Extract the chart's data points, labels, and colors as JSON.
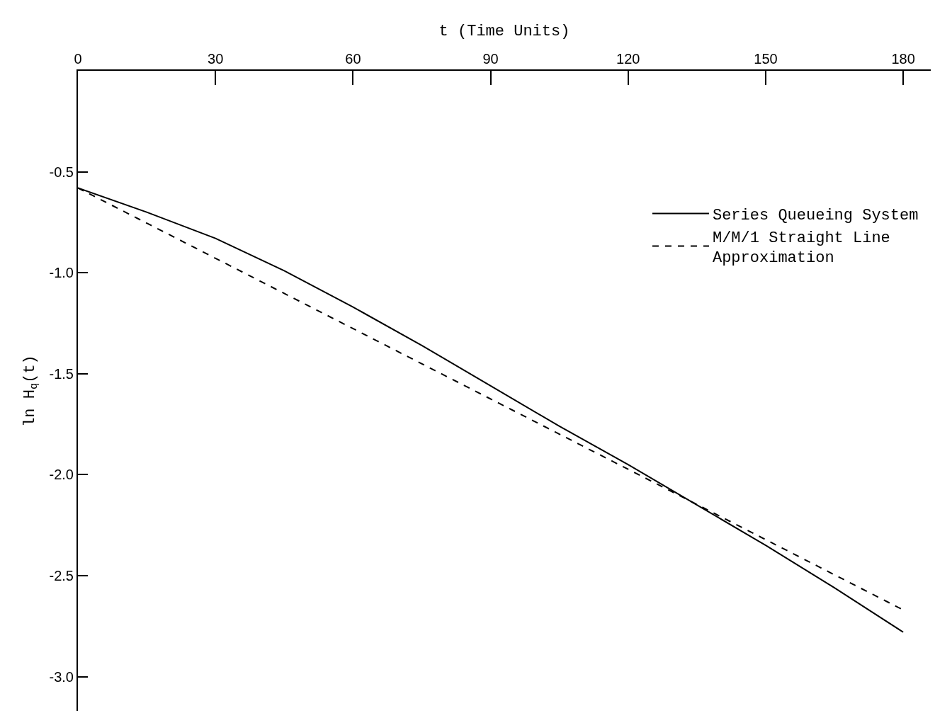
{
  "chart_data": {
    "type": "line",
    "xlabel": "t (Time Units)",
    "ylabel": "ln H$_{q}$(t)",
    "xlim": [
      0,
      186
    ],
    "xticks": [
      0,
      30,
      60,
      90,
      120,
      150,
      180
    ],
    "ylim": [
      -3.17,
      0
    ],
    "yticks": [
      {
        "value": -0.5,
        "label": "-0.5"
      },
      {
        "value": -1.0,
        "label": "-1.0"
      },
      {
        "value": -1.5,
        "label": "-1.5"
      },
      {
        "value": -2.0,
        "label": "-2.0"
      },
      {
        "value": -2.5,
        "label": "-2.5"
      },
      {
        "value": -3.0,
        "label": "-3.0"
      }
    ],
    "x": [
      0,
      15,
      30,
      45,
      60,
      75,
      90,
      105,
      120,
      135,
      150,
      165,
      180
    ],
    "series": [
      {
        "name": "Series Queueing System",
        "color": "#000000",
        "line_style": "solid",
        "values": [
          -0.58,
          -0.7,
          -0.83,
          -0.99,
          -1.17,
          -1.36,
          -1.56,
          -1.76,
          -1.95,
          -2.15,
          -2.35,
          -2.56,
          -2.78
        ]
      },
      {
        "name": "M/M/1 Straight Line\nApproximation",
        "color": "#000000",
        "line_style": "dashed",
        "x": [
          0,
          180
        ],
        "values": [
          -0.58,
          -2.67
        ]
      }
    ],
    "legend": "top right",
    "marker": "none"
  }
}
